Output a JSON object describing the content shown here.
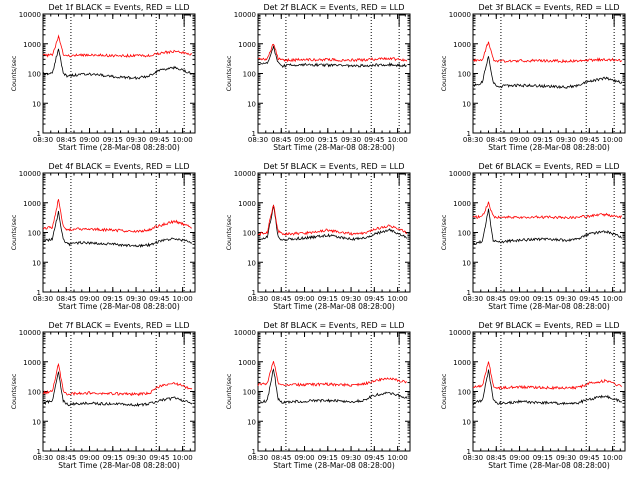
{
  "figure": {
    "ylabel": "Counts/sec",
    "xlabel": "Start Time (28-Mar-08 08:28:00)",
    "x_ticks": [
      "08:30",
      "08:45",
      "09:00",
      "09:15",
      "09:30",
      "09:45",
      "10:00"
    ],
    "y_ticks": [
      "1",
      "10",
      "100",
      "1000",
      "10000"
    ]
  },
  "colors": {
    "events": "#000000",
    "lld": "#ff0000",
    "axis": "#000000"
  },
  "chart_data": [
    {
      "type": "line",
      "title": "Det 1f BLACK = Events, RED = LLD",
      "xlabel": "Start Time (28-Mar-08 08:28:00)",
      "ylabel": "Counts/sec",
      "ylog": true,
      "ylim": [
        1,
        10000
      ],
      "xlim": [
        "08:30",
        "10:08"
      ],
      "dotted_x": [
        "08:48",
        "09:43",
        "10:01"
      ],
      "flag_time": "10:01",
      "series": [
        {
          "name": "Events",
          "color": "#000000",
          "x": [
            "08:30",
            "08:36",
            "08:40",
            "08:43",
            "08:46",
            "08:50",
            "09:00",
            "09:15",
            "09:30",
            "09:38",
            "09:45",
            "09:55",
            "10:06"
          ],
          "y": [
            100,
            100,
            700,
            100,
            80,
            90,
            95,
            80,
            70,
            80,
            130,
            160,
            100
          ]
        },
        {
          "name": "LLD",
          "color": "#ff0000",
          "x": [
            "08:30",
            "08:36",
            "08:40",
            "08:43",
            "08:46",
            "08:50",
            "09:00",
            "09:15",
            "09:30",
            "09:38",
            "09:45",
            "09:55",
            "10:06"
          ],
          "y": [
            400,
            420,
            1700,
            450,
            400,
            400,
            420,
            400,
            390,
            400,
            480,
            560,
            450
          ]
        }
      ]
    },
    {
      "type": "line",
      "title": "Det 2f BLACK = Events, RED = LLD",
      "xlabel": "Start Time (28-Mar-08 08:28:00)",
      "ylabel": "Counts/sec",
      "ylog": true,
      "ylim": [
        1,
        10000
      ],
      "xlim": [
        "08:30",
        "10:08"
      ],
      "dotted_x": [
        "08:48",
        "09:43",
        "10:01"
      ],
      "flag_time": "10:01",
      "series": [
        {
          "name": "Events",
          "color": "#000000",
          "x": [
            "08:30",
            "08:36",
            "08:40",
            "08:43",
            "08:46",
            "08:50",
            "09:00",
            "09:15",
            "09:30",
            "09:38",
            "09:45",
            "09:55",
            "10:06"
          ],
          "y": [
            220,
            230,
            750,
            230,
            180,
            190,
            200,
            190,
            180,
            185,
            190,
            200,
            180
          ]
        },
        {
          "name": "LLD",
          "color": "#ff0000",
          "x": [
            "08:30",
            "08:36",
            "08:40",
            "08:43",
            "08:46",
            "08:50",
            "09:00",
            "09:15",
            "09:30",
            "09:38",
            "09:45",
            "09:55",
            "10:06"
          ],
          "y": [
            300,
            310,
            1000,
            320,
            280,
            280,
            290,
            290,
            280,
            290,
            300,
            320,
            280
          ]
        }
      ]
    },
    {
      "type": "line",
      "title": "Det 3f BLACK = Events, RED = LLD",
      "xlabel": "Start Time (28-Mar-08 08:28:00)",
      "ylabel": "Counts/sec",
      "ylog": true,
      "ylim": [
        1,
        10000
      ],
      "xlim": [
        "08:30",
        "10:08"
      ],
      "dotted_x": [
        "08:48",
        "09:43",
        "10:01"
      ],
      "flag_time": "10:01",
      "series": [
        {
          "name": "Events",
          "color": "#000000",
          "x": [
            "08:30",
            "08:36",
            "08:40",
            "08:43",
            "08:46",
            "08:50",
            "09:00",
            "09:15",
            "09:30",
            "09:38",
            "09:45",
            "09:55",
            "10:06"
          ],
          "y": [
            40,
            50,
            400,
            50,
            35,
            38,
            40,
            38,
            35,
            40,
            55,
            70,
            50
          ]
        },
        {
          "name": "LLD",
          "color": "#ff0000",
          "x": [
            "08:30",
            "08:36",
            "08:40",
            "08:43",
            "08:46",
            "08:50",
            "09:00",
            "09:15",
            "09:30",
            "09:38",
            "09:45",
            "09:55",
            "10:06"
          ],
          "y": [
            280,
            290,
            1200,
            300,
            260,
            260,
            270,
            270,
            260,
            265,
            280,
            300,
            270
          ]
        }
      ]
    },
    {
      "type": "line",
      "title": "Det 4f BLACK = Events, RED = LLD",
      "xlabel": "Start Time (28-Mar-08 08:28:00)",
      "ylabel": "Counts/sec",
      "ylog": true,
      "ylim": [
        1,
        10000
      ],
      "xlim": [
        "08:30",
        "10:08"
      ],
      "dotted_x": [
        "08:48",
        "09:43",
        "10:01"
      ],
      "flag_time": "10:01",
      "series": [
        {
          "name": "Events",
          "color": "#000000",
          "x": [
            "08:30",
            "08:36",
            "08:40",
            "08:43",
            "08:46",
            "08:50",
            "09:00",
            "09:15",
            "09:30",
            "09:38",
            "09:45",
            "09:55",
            "10:06"
          ],
          "y": [
            50,
            60,
            500,
            60,
            40,
            45,
            45,
            40,
            35,
            38,
            50,
            65,
            45
          ]
        },
        {
          "name": "LLD",
          "color": "#ff0000",
          "x": [
            "08:30",
            "08:36",
            "08:40",
            "08:43",
            "08:46",
            "08:50",
            "09:00",
            "09:15",
            "09:30",
            "09:38",
            "09:45",
            "09:55",
            "10:06"
          ],
          "y": [
            140,
            150,
            1300,
            160,
            120,
            130,
            130,
            120,
            110,
            120,
            170,
            240,
            150
          ]
        }
      ]
    },
    {
      "type": "line",
      "title": "Det 5f BLACK = Events, RED = LLD",
      "xlabel": "Start Time (28-Mar-08 08:28:00)",
      "ylabel": "Counts/sec",
      "ylog": true,
      "ylim": [
        1,
        10000
      ],
      "xlim": [
        "08:30",
        "10:08"
      ],
      "dotted_x": [
        "08:48",
        "09:43",
        "10:01"
      ],
      "flag_time": "10:01",
      "series": [
        {
          "name": "Events",
          "color": "#000000",
          "x": [
            "08:30",
            "08:36",
            "08:40",
            "08:43",
            "08:46",
            "08:50",
            "09:00",
            "09:15",
            "09:30",
            "09:38",
            "09:45",
            "09:55",
            "10:06"
          ],
          "y": [
            60,
            70,
            800,
            70,
            55,
            60,
            65,
            80,
            60,
            65,
            90,
            120,
            70
          ]
        },
        {
          "name": "LLD",
          "color": "#ff0000",
          "x": [
            "08:30",
            "08:36",
            "08:40",
            "08:43",
            "08:46",
            "08:50",
            "09:00",
            "09:15",
            "09:30",
            "09:38",
            "09:45",
            "09:55",
            "10:06"
          ],
          "y": [
            90,
            100,
            900,
            110,
            85,
            90,
            95,
            120,
            90,
            95,
            130,
            170,
            100
          ]
        }
      ]
    },
    {
      "type": "line",
      "title": "Det 6f BLACK = Events, RED = LLD",
      "xlabel": "Start Time (28-Mar-08 08:28:00)",
      "ylabel": "Counts/sec",
      "ylog": true,
      "ylim": [
        1,
        10000
      ],
      "xlim": [
        "08:30",
        "10:08"
      ],
      "dotted_x": [
        "08:48",
        "09:43",
        "10:01"
      ],
      "flag_time": "10:01",
      "series": [
        {
          "name": "Events",
          "color": "#000000",
          "x": [
            "08:30",
            "08:36",
            "08:40",
            "08:43",
            "08:46",
            "08:50",
            "09:00",
            "09:15",
            "09:30",
            "09:38",
            "09:45",
            "09:55",
            "10:06"
          ],
          "y": [
            40,
            50,
            600,
            55,
            45,
            50,
            55,
            60,
            55,
            60,
            90,
            110,
            70
          ]
        },
        {
          "name": "LLD",
          "color": "#ff0000",
          "x": [
            "08:30",
            "08:36",
            "08:40",
            "08:43",
            "08:46",
            "08:50",
            "09:00",
            "09:15",
            "09:30",
            "09:38",
            "09:45",
            "09:55",
            "10:06"
          ],
          "y": [
            330,
            340,
            1000,
            350,
            320,
            320,
            330,
            330,
            320,
            330,
            360,
            400,
            330
          ]
        }
      ]
    },
    {
      "type": "line",
      "title": "Det 7f BLACK = Events, RED = LLD",
      "xlabel": "Start Time (28-Mar-08 08:28:00)",
      "ylabel": "Counts/sec",
      "ylog": true,
      "ylim": [
        1,
        10000
      ],
      "xlim": [
        "08:30",
        "10:08"
      ],
      "dotted_x": [
        "08:48",
        "09:43",
        "10:01"
      ],
      "flag_time": "10:01",
      "series": [
        {
          "name": "Events",
          "color": "#000000",
          "x": [
            "08:30",
            "08:36",
            "08:40",
            "08:43",
            "08:46",
            "08:50",
            "09:00",
            "09:15",
            "09:30",
            "09:38",
            "09:45",
            "09:55",
            "10:06"
          ],
          "y": [
            40,
            50,
            450,
            50,
            35,
            38,
            40,
            38,
            35,
            38,
            50,
            60,
            40
          ]
        },
        {
          "name": "LLD",
          "color": "#ff0000",
          "x": [
            "08:30",
            "08:36",
            "08:40",
            "08:43",
            "08:46",
            "08:50",
            "09:00",
            "09:15",
            "09:30",
            "09:38",
            "09:45",
            "09:55",
            "10:06"
          ],
          "y": [
            90,
            100,
            900,
            110,
            80,
            85,
            90,
            85,
            80,
            85,
            150,
            190,
            120
          ]
        }
      ]
    },
    {
      "type": "line",
      "title": "Det 8f BLACK = Events, RED = LLD",
      "xlabel": "Start Time (28-Mar-08 08:28:00)",
      "ylabel": "Counts/sec",
      "ylog": true,
      "ylim": [
        1,
        10000
      ],
      "xlim": [
        "08:30",
        "10:08"
      ],
      "dotted_x": [
        "08:48",
        "09:43",
        "10:01"
      ],
      "flag_time": "10:01",
      "series": [
        {
          "name": "Events",
          "color": "#000000",
          "x": [
            "08:30",
            "08:36",
            "08:40",
            "08:43",
            "08:46",
            "08:50",
            "09:00",
            "09:15",
            "09:30",
            "09:38",
            "09:45",
            "09:55",
            "10:06"
          ],
          "y": [
            40,
            50,
            600,
            55,
            42,
            45,
            48,
            50,
            45,
            50,
            75,
            90,
            60
          ]
        },
        {
          "name": "LLD",
          "color": "#ff0000",
          "x": [
            "08:30",
            "08:36",
            "08:40",
            "08:43",
            "08:46",
            "08:50",
            "09:00",
            "09:15",
            "09:30",
            "09:38",
            "09:45",
            "09:55",
            "10:06"
          ],
          "y": [
            170,
            180,
            1100,
            190,
            160,
            165,
            170,
            175,
            165,
            175,
            230,
            280,
            200
          ]
        }
      ]
    },
    {
      "type": "line",
      "title": "Det 9f BLACK = Events, RED = LLD",
      "xlabel": "Start Time (28-Mar-08 08:28:00)",
      "ylabel": "Counts/sec",
      "ylog": true,
      "ylim": [
        1,
        10000
      ],
      "xlim": [
        "08:30",
        "10:08"
      ],
      "dotted_x": [
        "08:48",
        "09:43",
        "10:01"
      ],
      "flag_time": "10:01",
      "series": [
        {
          "name": "Events",
          "color": "#000000",
          "x": [
            "08:30",
            "08:36",
            "08:40",
            "08:43",
            "08:46",
            "08:50",
            "09:00",
            "09:15",
            "09:30",
            "09:38",
            "09:45",
            "09:55",
            "10:06"
          ],
          "y": [
            40,
            50,
            500,
            55,
            40,
            42,
            45,
            42,
            40,
            42,
            55,
            70,
            45
          ]
        },
        {
          "name": "LLD",
          "color": "#ff0000",
          "x": [
            "08:30",
            "08:36",
            "08:40",
            "08:43",
            "08:46",
            "08:50",
            "09:00",
            "09:15",
            "09:30",
            "09:38",
            "09:45",
            "09:55",
            "10:06"
          ],
          "y": [
            140,
            150,
            1050,
            160,
            130,
            135,
            140,
            135,
            130,
            135,
            190,
            230,
            150
          ]
        }
      ]
    }
  ]
}
